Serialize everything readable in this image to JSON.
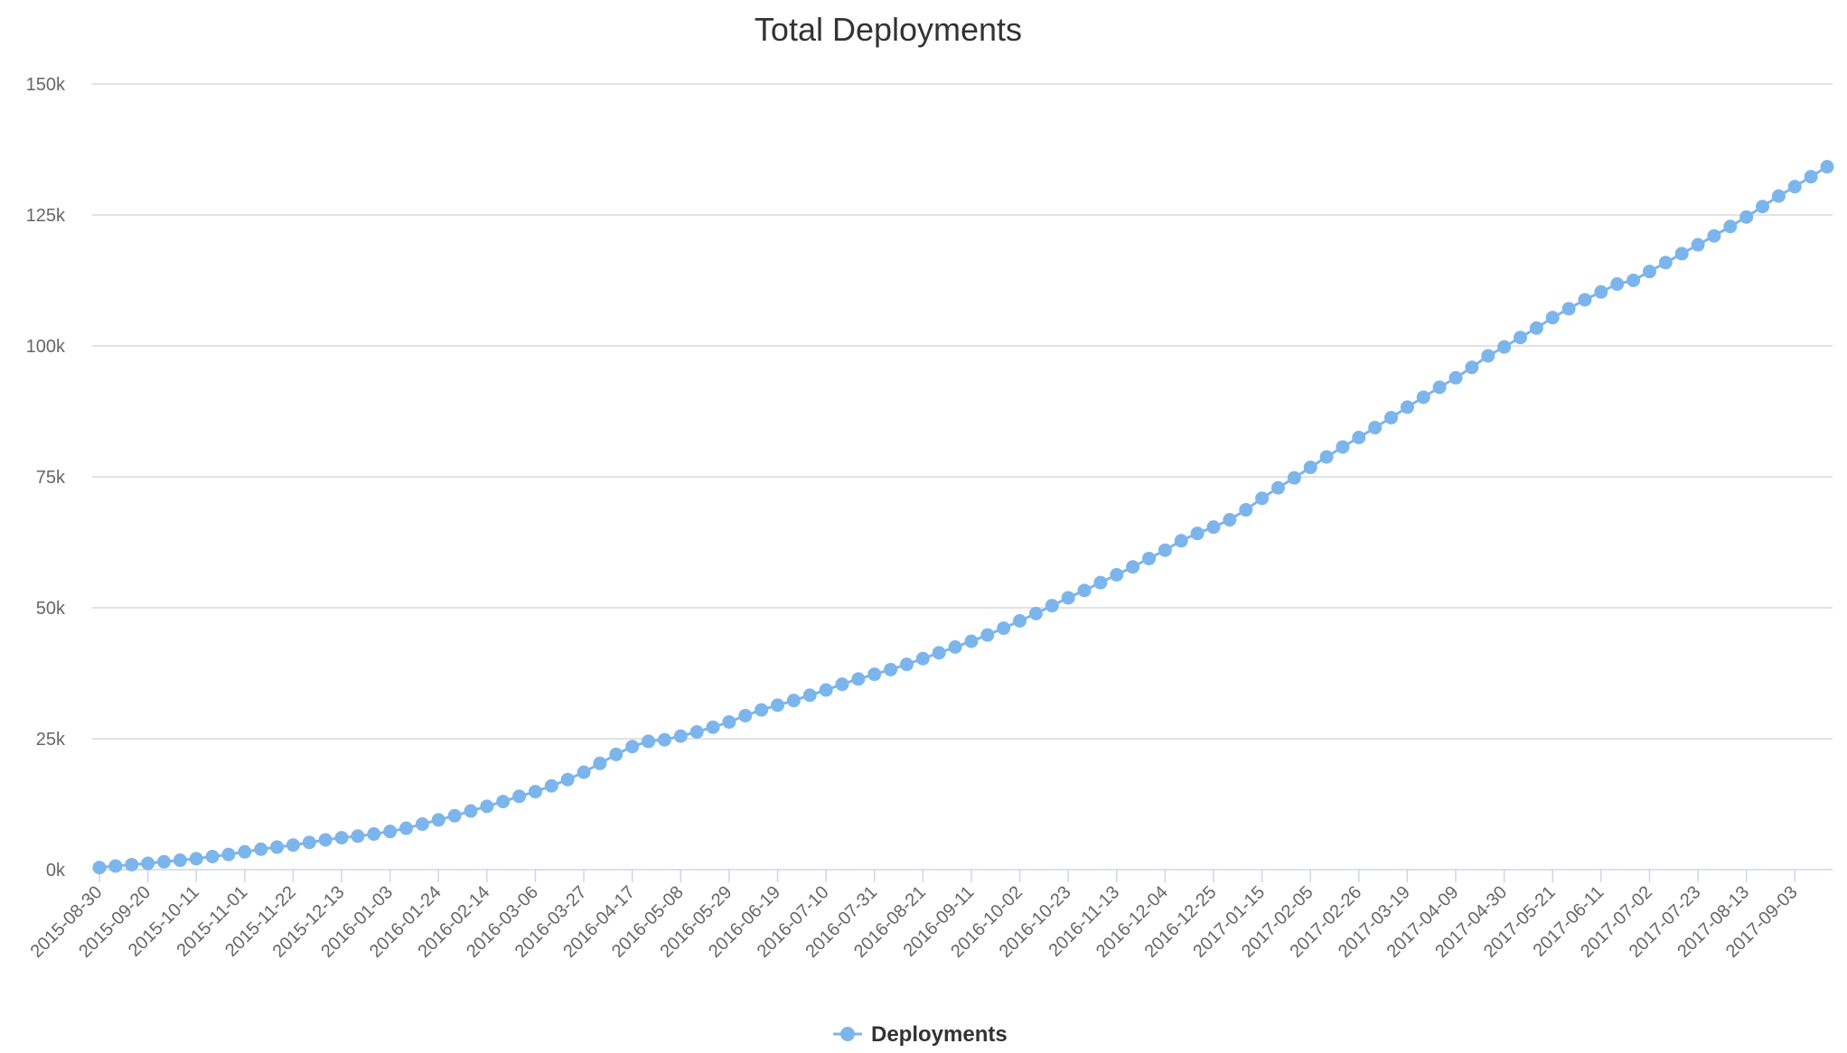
{
  "colors": {
    "series": "#7cb5ec",
    "grid": "#d8d8d8",
    "axis": "#ccd6eb",
    "text": "#333333",
    "tick_text": "#666666"
  },
  "chart_data": {
    "type": "line",
    "title": "Total Deployments",
    "xlabel": "",
    "ylabel": "",
    "ylim": [
      0,
      150000
    ],
    "yticks": [
      {
        "value": 0,
        "label": "0k"
      },
      {
        "value": 25000,
        "label": "25k"
      },
      {
        "value": 50000,
        "label": "50k"
      },
      {
        "value": 75000,
        "label": "75k"
      },
      {
        "value": 100000,
        "label": "100k"
      },
      {
        "value": 125000,
        "label": "125k"
      },
      {
        "value": 150000,
        "label": "150k"
      }
    ],
    "grid": true,
    "legend": {
      "position": "bottom-center"
    },
    "x_tick_labels": [
      "2015-08-30",
      "2015-09-20",
      "2015-10-11",
      "2015-11-01",
      "2015-11-22",
      "2015-12-13",
      "2016-01-03",
      "2016-01-24",
      "2016-02-14",
      "2016-03-06",
      "2016-03-27",
      "2016-04-17",
      "2016-05-08",
      "2016-05-29",
      "2016-06-19",
      "2016-07-10",
      "2016-07-31",
      "2016-08-21",
      "2016-09-11",
      "2016-10-02",
      "2016-10-23",
      "2016-11-13",
      "2016-12-04",
      "2016-12-25",
      "2017-01-15",
      "2017-02-05",
      "2017-02-26",
      "2017-03-19",
      "2017-04-09",
      "2017-04-30",
      "2017-05-21",
      "2017-06-11",
      "2017-07-02",
      "2017-07-23",
      "2017-08-13",
      "2017-09-03"
    ],
    "x": [
      "2015-08-30",
      "2015-09-06",
      "2015-09-13",
      "2015-09-20",
      "2015-09-27",
      "2015-10-04",
      "2015-10-11",
      "2015-10-18",
      "2015-10-25",
      "2015-11-01",
      "2015-11-08",
      "2015-11-15",
      "2015-11-22",
      "2015-11-29",
      "2015-12-06",
      "2015-12-13",
      "2015-12-20",
      "2015-12-27",
      "2016-01-03",
      "2016-01-10",
      "2016-01-17",
      "2016-01-24",
      "2016-01-31",
      "2016-02-07",
      "2016-02-14",
      "2016-02-21",
      "2016-02-28",
      "2016-03-06",
      "2016-03-13",
      "2016-03-20",
      "2016-03-27",
      "2016-04-03",
      "2016-04-10",
      "2016-04-17",
      "2016-04-24",
      "2016-05-01",
      "2016-05-08",
      "2016-05-15",
      "2016-05-22",
      "2016-05-29",
      "2016-06-05",
      "2016-06-12",
      "2016-06-19",
      "2016-06-26",
      "2016-07-03",
      "2016-07-10",
      "2016-07-17",
      "2016-07-24",
      "2016-07-31",
      "2016-08-07",
      "2016-08-14",
      "2016-08-21",
      "2016-08-28",
      "2016-09-04",
      "2016-09-11",
      "2016-09-18",
      "2016-09-25",
      "2016-10-02",
      "2016-10-09",
      "2016-10-16",
      "2016-10-23",
      "2016-10-30",
      "2016-11-06",
      "2016-11-13",
      "2016-11-20",
      "2016-11-27",
      "2016-12-04",
      "2016-12-11",
      "2016-12-18",
      "2016-12-25",
      "2017-01-01",
      "2017-01-08",
      "2017-01-15",
      "2017-01-22",
      "2017-01-29",
      "2017-02-05",
      "2017-02-12",
      "2017-02-19",
      "2017-02-26",
      "2017-03-05",
      "2017-03-12",
      "2017-03-19",
      "2017-03-26",
      "2017-04-02",
      "2017-04-09",
      "2017-04-16",
      "2017-04-23",
      "2017-04-30",
      "2017-05-07",
      "2017-05-14",
      "2017-05-21",
      "2017-05-28",
      "2017-06-04",
      "2017-06-11",
      "2017-06-18",
      "2017-06-25",
      "2017-07-02",
      "2017-07-09",
      "2017-07-16",
      "2017-07-23",
      "2017-07-30",
      "2017-08-06",
      "2017-08-13",
      "2017-08-20",
      "2017-08-27",
      "2017-09-03",
      "2017-09-10",
      "2017-09-17"
    ],
    "series": [
      {
        "name": "Deployments",
        "values": [
          400,
          700,
          950,
          1200,
          1500,
          1800,
          2100,
          2500,
          2900,
          3400,
          3900,
          4300,
          4700,
          5200,
          5700,
          6100,
          6400,
          6800,
          7300,
          7900,
          8700,
          9500,
          10300,
          11200,
          12100,
          13000,
          14000,
          14900,
          16000,
          17200,
          18600,
          20300,
          22000,
          23500,
          24500,
          24800,
          25500,
          26300,
          27200,
          28200,
          29400,
          30500,
          31400,
          32300,
          33300,
          34300,
          35400,
          36400,
          37300,
          38200,
          39200,
          40300,
          41400,
          42500,
          43600,
          44800,
          46100,
          47500,
          48900,
          50400,
          51900,
          53300,
          54800,
          56300,
          57800,
          59400,
          61000,
          62800,
          64200,
          65400,
          66800,
          68700,
          70900,
          72900,
          74800,
          76800,
          78800,
          80700,
          82500,
          84400,
          86300,
          88300,
          90200,
          92100,
          93900,
          95900,
          98100,
          99800,
          101600,
          103400,
          105400,
          107100,
          108800,
          110300,
          111800,
          112500,
          114200,
          115900,
          117600,
          119300,
          121000,
          122800,
          124600,
          126600,
          128600,
          130400,
          132300,
          134200
        ]
      }
    ]
  }
}
